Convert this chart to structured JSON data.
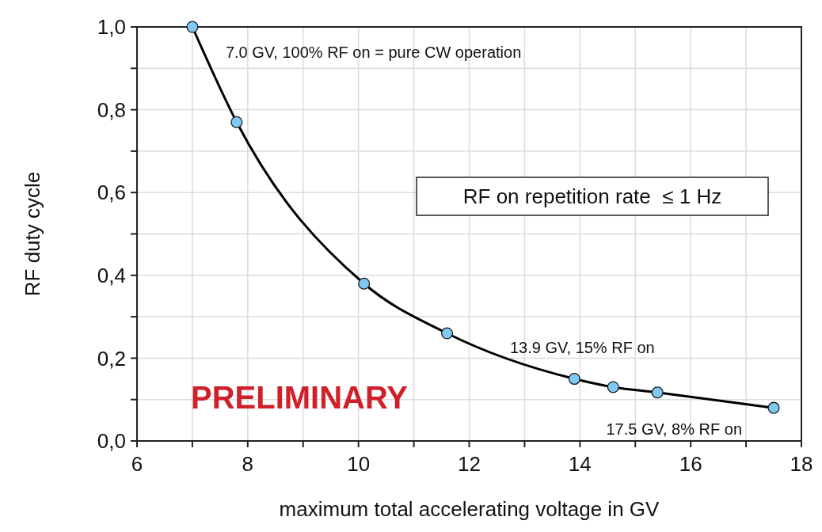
{
  "chart_data": {
    "type": "line",
    "xlabel": "maximum total accelerating voltage in GV",
    "ylabel": "RF duty cycle",
    "series": [
      {
        "color": "#000000",
        "marker": "none",
        "x": [
          7.0,
          7.8,
          10.1,
          11.6,
          13.9,
          14.6,
          15.4,
          17.5
        ],
        "values": [
          1.0,
          0.77,
          0.38,
          0.26,
          0.15,
          0.13,
          0.117,
          0.08
        ]
      },
      {
        "type": "scatter",
        "color": "#7fc9f2",
        "marker": "circle",
        "x": [
          7.0,
          7.8,
          10.1,
          11.6,
          13.9,
          14.6,
          15.4,
          17.5
        ],
        "values": [
          1.0,
          0.77,
          0.38,
          0.26,
          0.15,
          0.13,
          0.117,
          0.08
        ]
      }
    ],
    "xlim": [
      6,
      18
    ],
    "xticks": [
      6,
      {
        "value": 7,
        "label": null
      },
      8,
      {
        "value": 9,
        "label": null
      },
      10,
      {
        "value": 11,
        "label": null
      },
      12,
      {
        "value": 13,
        "label": null
      },
      14,
      {
        "value": 15,
        "label": null
      },
      16,
      {
        "value": 17,
        "label": null
      },
      18
    ],
    "ylim": [
      0,
      1
    ],
    "yticks": [
      {
        "value": 0,
        "label": "0,0"
      },
      {
        "value": 0.1,
        "label": null
      },
      {
        "value": 0.2,
        "label": "0,2"
      },
      {
        "value": 0.3,
        "label": null
      },
      {
        "value": 0.4,
        "label": "0,4"
      },
      {
        "value": 0.5,
        "label": null
      },
      {
        "value": 0.6,
        "label": "0,6"
      },
      {
        "value": 0.7,
        "label": null
      },
      {
        "value": 0.8,
        "label": "0,8"
      },
      {
        "value": 0.9,
        "label": null
      },
      {
        "value": 1,
        "label": "1,0"
      }
    ],
    "grid": true,
    "annotations": [
      {
        "text": "7.0 GV, 100% RF on = pure CW operation",
        "x": 7.0,
        "y": 1.0
      },
      {
        "text": "13.9 GV, 15% RF on",
        "x": 13.9,
        "y": 0.15
      },
      {
        "text": "17.5 GV, 8% RF on",
        "x": 17.5,
        "y": 0.08
      },
      "RF on repetition rate  ≤ 1 Hz",
      "PRELIMINARY"
    ]
  }
}
